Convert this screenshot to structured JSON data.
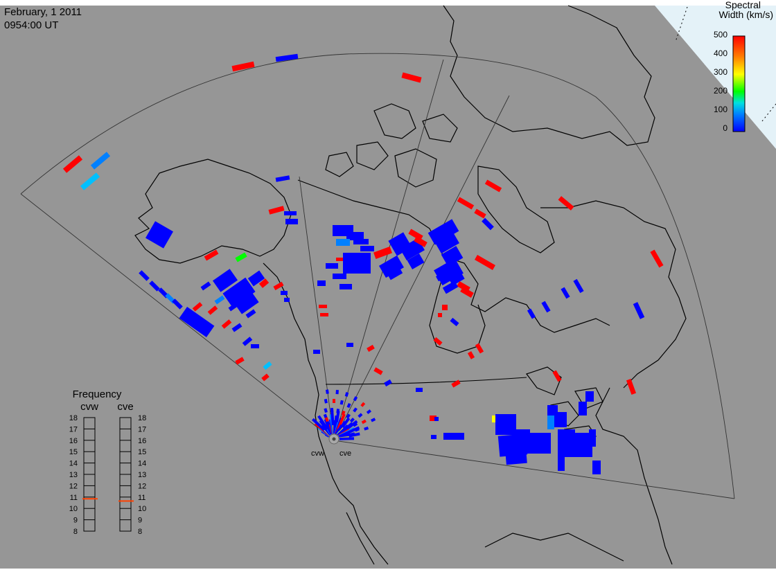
{
  "header": {
    "date": "February, 1 2011",
    "time": "0954:00 UT"
  },
  "colorbar": {
    "title_line1": "Spectral",
    "title_line2": "Width (km/s)",
    "ticks": [
      "500",
      "400",
      "300",
      "200",
      "100",
      "0"
    ]
  },
  "frequency": {
    "title": "Frequency",
    "radar_left": "cvw",
    "radar_right": "cve",
    "ticks": [
      "18",
      "17",
      "16",
      "15",
      "14",
      "13",
      "12",
      "11",
      "10",
      "9",
      "8"
    ],
    "cvw_value": 10.85,
    "cve_value": 10.65
  },
  "sites": {
    "left": "cvw",
    "right": "cve"
  },
  "colors": {
    "background": "#969696",
    "pole_region": "#e4f2f8",
    "marker": "#ff4000",
    "scale": [
      "#0000ff",
      "#0080ff",
      "#00e0e0",
      "#00ff00",
      "#ffff00",
      "#ff8000",
      "#ff0000"
    ]
  }
}
